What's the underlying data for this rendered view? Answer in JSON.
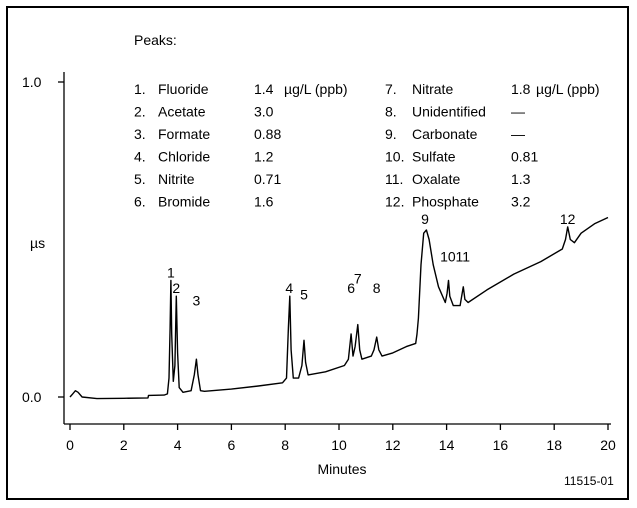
{
  "chart_data": {
    "type": "line",
    "xlabel": "Minutes",
    "ylabel": "µs",
    "xlim": [
      0,
      20
    ],
    "ylim": [
      0.0,
      1.0
    ],
    "x_ticks": [
      "0",
      "2",
      "4",
      "6",
      "8",
      "10",
      "12",
      "14",
      "16",
      "18",
      "20"
    ],
    "y_ticks": [
      "0.0",
      "1.0"
    ],
    "figure_id": "11515-01",
    "grid": false,
    "peaks_title": "Peaks:",
    "peaks": [
      {
        "num": "1.",
        "name": "Fluoride",
        "value": "1.4",
        "unit": "µg/L (ppb)"
      },
      {
        "num": "2.",
        "name": "Acetate",
        "value": "3.0",
        "unit": ""
      },
      {
        "num": "3.",
        "name": "Formate",
        "value": "0.88",
        "unit": ""
      },
      {
        "num": "4.",
        "name": "Chloride",
        "value": "1.2",
        "unit": ""
      },
      {
        "num": "5.",
        "name": "Nitrite",
        "value": "0.71",
        "unit": ""
      },
      {
        "num": "6.",
        "name": "Bromide",
        "value": "1.6",
        "unit": ""
      },
      {
        "num": "7.",
        "name": "Nitrate",
        "value": "1.8",
        "unit": "µg/L (ppb)"
      },
      {
        "num": "8.",
        "name": "Unidentified",
        "value": "—",
        "unit": ""
      },
      {
        "num": "9.",
        "name": "Carbonate",
        "value": "—",
        "unit": ""
      },
      {
        "num": "10.",
        "name": "Sulfate",
        "value": "0.81",
        "unit": ""
      },
      {
        "num": "11.",
        "name": "Oxalate",
        "value": "1.3",
        "unit": ""
      },
      {
        "num": "12.",
        "name": "Phosphate",
        "value": "3.2",
        "unit": ""
      }
    ],
    "peak_markers": [
      {
        "label": "1",
        "x": 3.75,
        "y": 0.38
      },
      {
        "label": "2",
        "x": 3.95,
        "y": 0.33
      },
      {
        "label": "3",
        "x": 4.7,
        "y": 0.29
      },
      {
        "label": "4",
        "x": 8.15,
        "y": 0.33
      },
      {
        "label": "5",
        "x": 8.7,
        "y": 0.31
      },
      {
        "label": "6",
        "x": 10.45,
        "y": 0.33
      },
      {
        "label": "7",
        "x": 10.7,
        "y": 0.36
      },
      {
        "label": "8",
        "x": 11.4,
        "y": 0.33
      },
      {
        "label": "9",
        "x": 13.2,
        "y": 0.55
      },
      {
        "label": "10",
        "x": 14.05,
        "y": 0.43
      },
      {
        "label": "11",
        "x": 14.6,
        "y": 0.43
      },
      {
        "label": "12",
        "x": 18.5,
        "y": 0.55
      }
    ],
    "series": [
      {
        "points": [
          [
            0.0,
            0.0
          ],
          [
            0.1,
            0.01
          ],
          [
            0.2,
            0.02
          ],
          [
            0.3,
            0.015
          ],
          [
            0.45,
            0.0
          ],
          [
            1.0,
            -0.005
          ],
          [
            2.0,
            -0.004
          ],
          [
            2.9,
            -0.003
          ],
          [
            2.92,
            0.005
          ],
          [
            3.5,
            0.006
          ],
          [
            3.62,
            0.01
          ],
          [
            3.68,
            0.06
          ],
          [
            3.72,
            0.22
          ],
          [
            3.75,
            0.37
          ],
          [
            3.78,
            0.2
          ],
          [
            3.84,
            0.05
          ],
          [
            3.9,
            0.1
          ],
          [
            3.95,
            0.32
          ],
          [
            4.0,
            0.14
          ],
          [
            4.06,
            0.03
          ],
          [
            4.2,
            0.015
          ],
          [
            4.5,
            0.02
          ],
          [
            4.62,
            0.07
          ],
          [
            4.7,
            0.12
          ],
          [
            4.76,
            0.07
          ],
          [
            4.85,
            0.02
          ],
          [
            5.0,
            0.018
          ],
          [
            6.0,
            0.025
          ],
          [
            7.0,
            0.035
          ],
          [
            7.9,
            0.045
          ],
          [
            8.05,
            0.06
          ],
          [
            8.12,
            0.22
          ],
          [
            8.17,
            0.32
          ],
          [
            8.22,
            0.15
          ],
          [
            8.3,
            0.06
          ],
          [
            8.5,
            0.06
          ],
          [
            8.62,
            0.1
          ],
          [
            8.7,
            0.18
          ],
          [
            8.76,
            0.11
          ],
          [
            8.85,
            0.07
          ],
          [
            9.5,
            0.08
          ],
          [
            10.2,
            0.1
          ],
          [
            10.35,
            0.12
          ],
          [
            10.45,
            0.2
          ],
          [
            10.52,
            0.13
          ],
          [
            10.6,
            0.16
          ],
          [
            10.7,
            0.23
          ],
          [
            10.77,
            0.15
          ],
          [
            10.85,
            0.12
          ],
          [
            11.2,
            0.13
          ],
          [
            11.3,
            0.15
          ],
          [
            11.4,
            0.19
          ],
          [
            11.48,
            0.15
          ],
          [
            11.6,
            0.13
          ],
          [
            12.0,
            0.14
          ],
          [
            12.5,
            0.16
          ],
          [
            12.85,
            0.17
          ],
          [
            12.9,
            0.2
          ],
          [
            12.95,
            0.25
          ],
          [
            13.05,
            0.42
          ],
          [
            13.15,
            0.52
          ],
          [
            13.25,
            0.53
          ],
          [
            13.35,
            0.5
          ],
          [
            13.5,
            0.42
          ],
          [
            13.7,
            0.35
          ],
          [
            13.95,
            0.3
          ],
          [
            14.02,
            0.33
          ],
          [
            14.07,
            0.37
          ],
          [
            14.12,
            0.32
          ],
          [
            14.25,
            0.29
          ],
          [
            14.5,
            0.29
          ],
          [
            14.58,
            0.33
          ],
          [
            14.62,
            0.35
          ],
          [
            14.68,
            0.31
          ],
          [
            14.8,
            0.3
          ],
          [
            15.5,
            0.34
          ],
          [
            16.5,
            0.39
          ],
          [
            17.5,
            0.43
          ],
          [
            18.3,
            0.47
          ],
          [
            18.42,
            0.5
          ],
          [
            18.5,
            0.54
          ],
          [
            18.6,
            0.5
          ],
          [
            18.75,
            0.49
          ],
          [
            19.0,
            0.52
          ],
          [
            19.5,
            0.55
          ],
          [
            20.0,
            0.57
          ]
        ]
      }
    ]
  }
}
